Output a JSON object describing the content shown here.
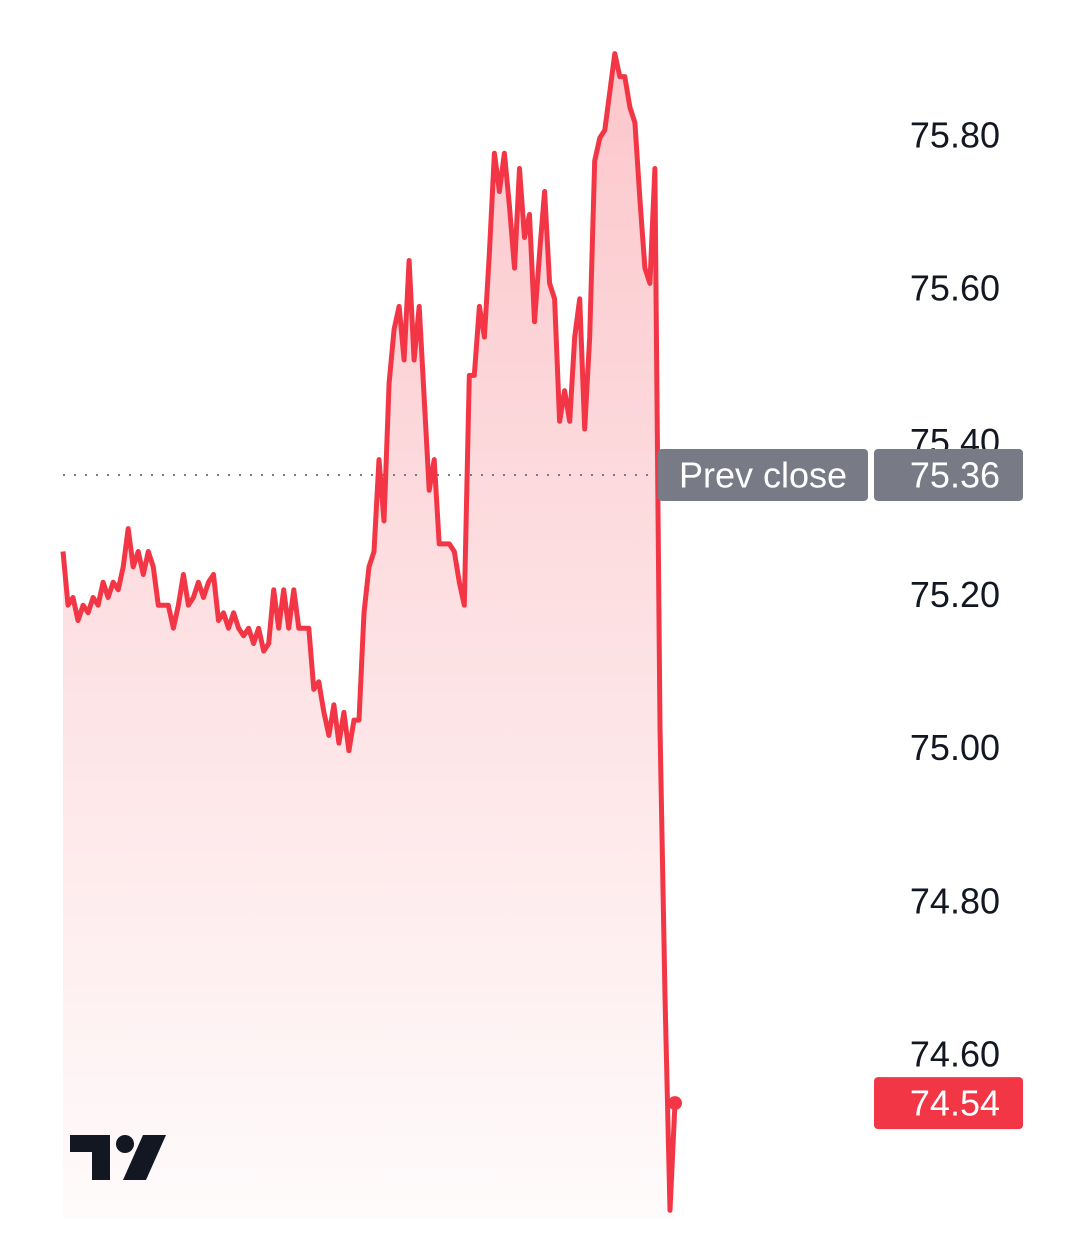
{
  "chart_data": {
    "type": "line",
    "color": "#f23645",
    "values": [
      75.26,
      75.19,
      75.2,
      75.17,
      75.19,
      75.18,
      75.2,
      75.19,
      75.22,
      75.2,
      75.22,
      75.21,
      75.24,
      75.29,
      75.24,
      75.26,
      75.23,
      75.26,
      75.24,
      75.19,
      75.19,
      75.19,
      75.16,
      75.19,
      75.23,
      75.19,
      75.2,
      75.22,
      75.2,
      75.22,
      75.23,
      75.17,
      75.18,
      75.16,
      75.18,
      75.16,
      75.15,
      75.16,
      75.14,
      75.16,
      75.13,
      75.14,
      75.21,
      75.16,
      75.21,
      75.16,
      75.21,
      75.16,
      75.16,
      75.16,
      75.08,
      75.09,
      75.05,
      75.02,
      75.06,
      75.01,
      75.05,
      75.0,
      75.04,
      75.04,
      75.18,
      75.24,
      75.26,
      75.38,
      75.3,
      75.48,
      75.55,
      75.58,
      75.51,
      75.64,
      75.51,
      75.58,
      75.46,
      75.34,
      75.38,
      75.27,
      75.27,
      75.27,
      75.26,
      75.22,
      75.19,
      75.49,
      75.49,
      75.58,
      75.54,
      75.65,
      75.78,
      75.73,
      75.78,
      75.71,
      75.63,
      75.76,
      75.67,
      75.7,
      75.56,
      75.65,
      75.73,
      75.61,
      75.59,
      75.43,
      75.47,
      75.43,
      75.54,
      75.59,
      75.42,
      75.54,
      75.77,
      75.8,
      75.81,
      75.86,
      75.91,
      75.88,
      75.88,
      75.84,
      75.82,
      75.72,
      75.63,
      75.61,
      75.76,
      75.03,
      74.68,
      74.4,
      74.54
    ],
    "ylim": [
      74.39,
      75.98
    ],
    "yticks": [
      {
        "value": 75.8,
        "label": "75.80"
      },
      {
        "value": 75.6,
        "label": "75.60"
      },
      {
        "value": 75.4,
        "label": "75.40"
      },
      {
        "value": 75.2,
        "label": "75.20"
      },
      {
        "value": 75.0,
        "label": "75.00"
      },
      {
        "value": 74.8,
        "label": "74.80"
      },
      {
        "value": 74.6,
        "label": "74.60"
      }
    ],
    "prev_close": {
      "label": "Prev close",
      "value": 75.36
    }
  }
}
